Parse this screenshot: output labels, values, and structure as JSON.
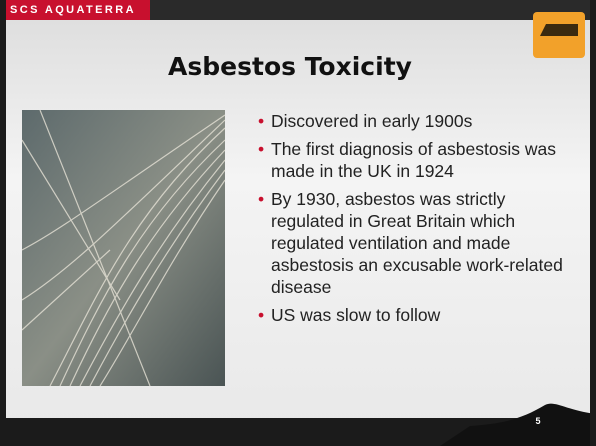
{
  "header": {
    "brand": "SCS AQUATERRA"
  },
  "title": "Asbestos Toxicity",
  "bullets": [
    "Discovered in early 1900s",
    "The first diagnosis of asbestosis was made in the UK in 1924",
    "By 1930, asbestos was strictly regulated in Great Britain which regulated ventilation and made asbestosis an excusable work-related disease",
    "US was slow to follow"
  ],
  "page_number": "5"
}
